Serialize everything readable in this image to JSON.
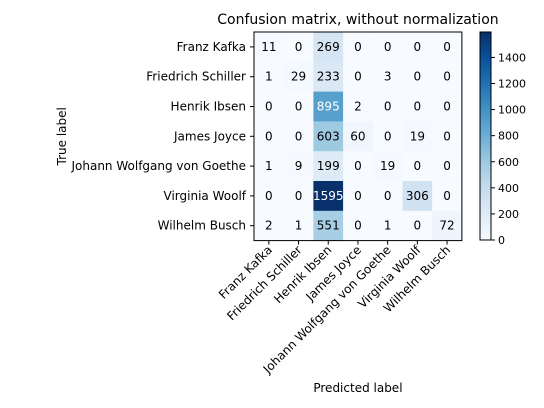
{
  "chart_data": {
    "type": "heatmap",
    "title": "Confusion matrix, without normalization",
    "xlabel": "Predicted label",
    "ylabel": "True label",
    "row_labels": [
      "Franz Kafka",
      "Friedrich Schiller",
      "Henrik Ibsen",
      "James Joyce",
      "Johann Wolfgang von Goethe",
      "Virginia Woolf",
      "Wilhelm Busch"
    ],
    "col_labels": [
      "Franz Kafka",
      "Friedrich Schiller",
      "Henrik Ibsen",
      "James Joyce",
      "Johann Wolfgang von Goethe",
      "Virginia Woolf",
      "Wilhelm Busch"
    ],
    "values": [
      [
        11,
        0,
        269,
        0,
        0,
        0,
        0
      ],
      [
        1,
        29,
        233,
        0,
        3,
        0,
        0
      ],
      [
        0,
        0,
        895,
        2,
        0,
        0,
        0
      ],
      [
        0,
        0,
        603,
        60,
        0,
        19,
        0
      ],
      [
        1,
        9,
        199,
        0,
        19,
        0,
        0
      ],
      [
        0,
        0,
        1595,
        0,
        0,
        306,
        0
      ],
      [
        2,
        1,
        551,
        0,
        1,
        0,
        72
      ]
    ],
    "colormap": "Blues",
    "vmin": 0,
    "vmax": 1595,
    "colorbar_ticks": [
      0,
      200,
      400,
      600,
      800,
      1000,
      1200,
      1400
    ]
  }
}
